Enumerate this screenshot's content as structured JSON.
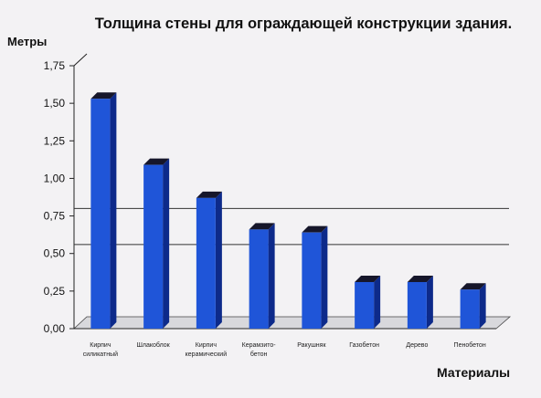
{
  "chart_data": {
    "type": "bar",
    "title": "Толщина стены для ограждающей конструкции здания.",
    "ylabel": "Метры",
    "xlabel": "Материалы",
    "ylim": [
      0,
      1.75
    ],
    "yticks": [
      "0,00",
      "0,25",
      "0,50",
      "0,75",
      "1,00",
      "1,25",
      "1,50",
      "1,75"
    ],
    "categories": [
      [
        "Кирпич",
        "силикатный"
      ],
      [
        "Шлакоблок"
      ],
      [
        "Кирпич",
        "керамический"
      ],
      [
        "Керамзито-",
        "бетон"
      ],
      [
        "Ракушняк"
      ],
      [
        "Газобетон"
      ],
      [
        "Дерево"
      ],
      [
        "Пенобетон"
      ]
    ],
    "values": [
      1.53,
      1.09,
      0.87,
      0.66,
      0.64,
      0.31,
      0.31,
      0.26
    ],
    "reference_lines": [
      0.8,
      0.56
    ],
    "bar_color": "#1f55d8",
    "bar_side_color": "#0d2a8a",
    "bar_top_color": "#16162a",
    "grid": false
  }
}
